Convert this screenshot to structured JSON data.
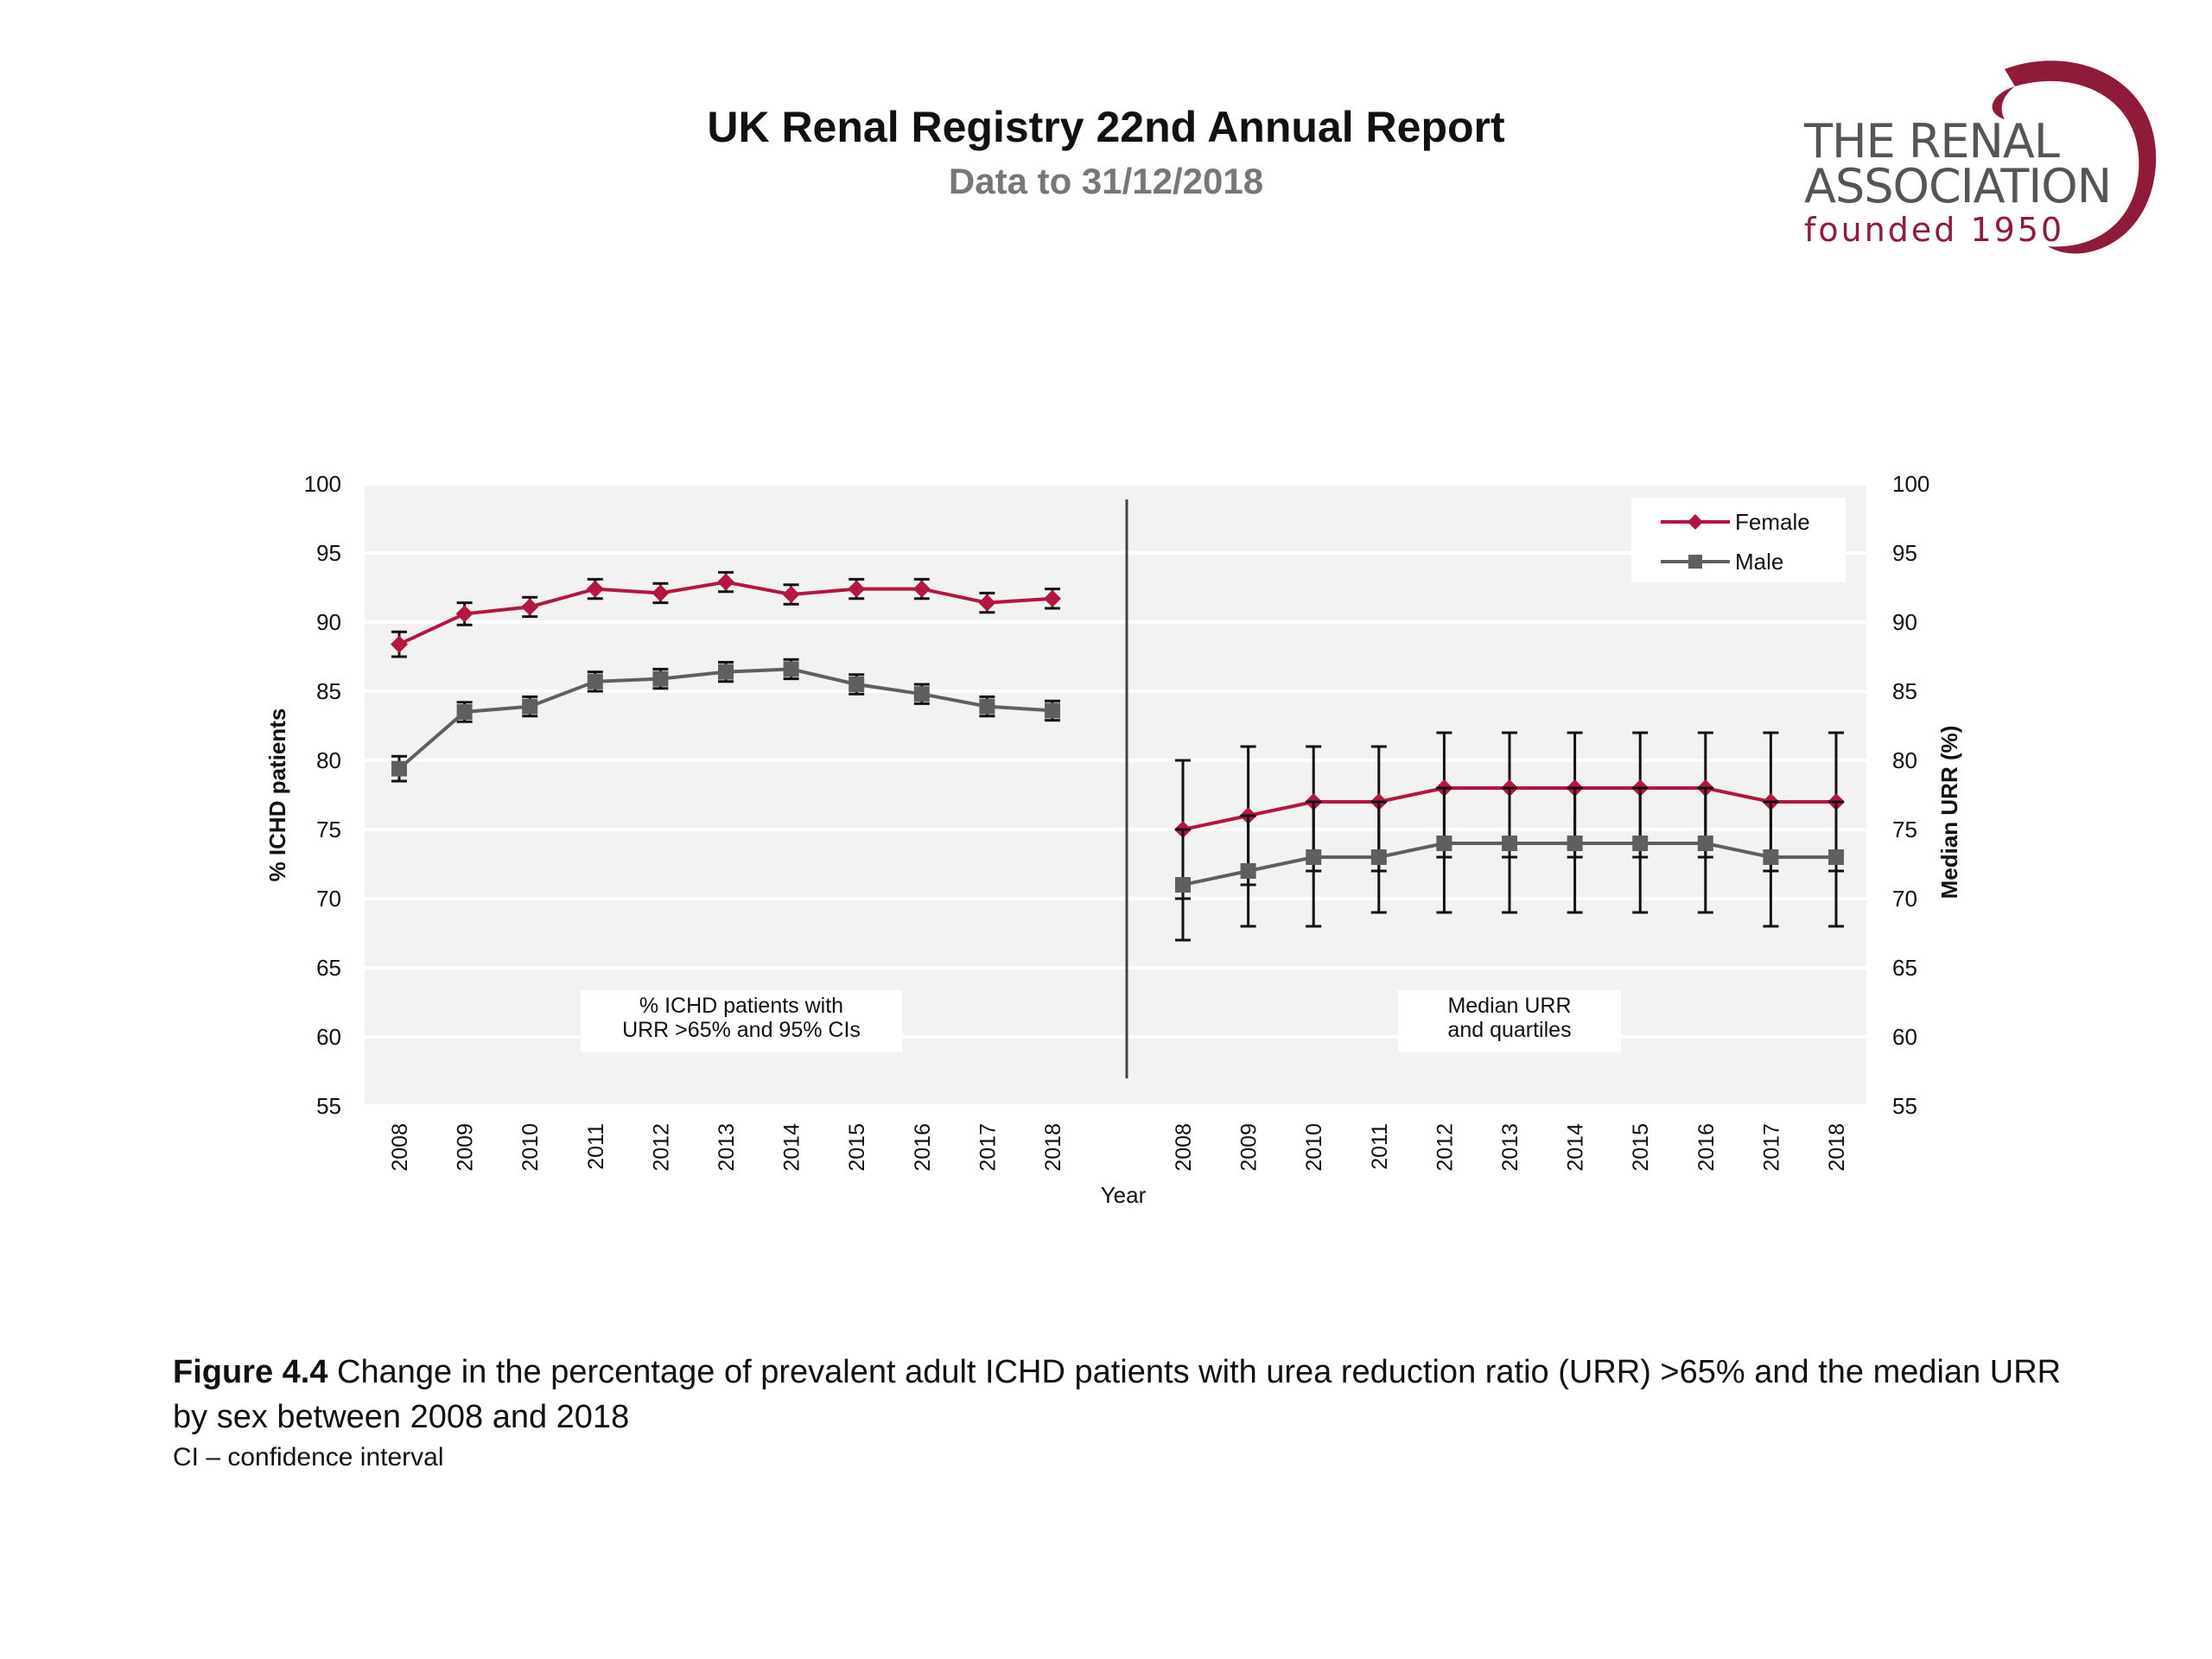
{
  "header": {
    "title": "UK Renal Registry 22nd Annual Report",
    "subtitle": "Data to 31/12/2018"
  },
  "logo": {
    "line1": "THE RENAL",
    "line2": "ASSOCIATION",
    "line3": "founded 1950",
    "color": "#8e1b3a"
  },
  "caption": {
    "label": "Figure 4.4",
    "text": " Change in the percentage of prevalent adult ICHD patients with urea reduction ratio (URR) >65% and the median URR by sex between 2008 and 2018",
    "note": "CI – confidence interval"
  },
  "chart_data": {
    "type": "line",
    "xlabel": "Year",
    "ylabel_left": "% ICHD patients",
    "ylabel_right": "Median URR (%)",
    "ylim": [
      55,
      100
    ],
    "yticks": [
      55,
      60,
      65,
      70,
      75,
      80,
      85,
      90,
      95,
      100
    ],
    "grid": true,
    "legend": {
      "placement": "top-right",
      "entries": [
        "Female",
        "Male"
      ]
    },
    "colors": {
      "female": "#b5163f",
      "male": "#5f5f5f",
      "error": "#111111"
    },
    "panels": [
      {
        "annotation": [
          "% ICHD patients with",
          "URR >65% and 95% CIs"
        ],
        "years": [
          "2008",
          "2009",
          "2010",
          "2011",
          "2012",
          "2013",
          "2014",
          "2015",
          "2016",
          "2017",
          "2018"
        ],
        "series": [
          {
            "name": "Female",
            "values": [
              88.4,
              90.6,
              91.1,
              92.4,
              92.1,
              92.9,
              92.0,
              92.4,
              92.4,
              91.4,
              91.7
            ],
            "lower": [
              87.5,
              89.8,
              90.4,
              91.7,
              91.4,
              92.2,
              91.3,
              91.7,
              91.7,
              90.7,
              91.0
            ],
            "upper": [
              89.3,
              91.4,
              91.8,
              93.1,
              92.8,
              93.6,
              92.7,
              93.1,
              93.1,
              92.1,
              92.4
            ]
          },
          {
            "name": "Male",
            "values": [
              79.4,
              83.5,
              83.9,
              85.7,
              85.9,
              86.4,
              86.6,
              85.5,
              84.8,
              83.9,
              83.6
            ],
            "lower": [
              78.5,
              82.8,
              83.2,
              85.0,
              85.2,
              85.7,
              85.9,
              84.8,
              84.1,
              83.2,
              82.9
            ],
            "upper": [
              80.3,
              84.2,
              84.6,
              86.4,
              86.6,
              87.1,
              87.3,
              86.2,
              85.5,
              84.6,
              84.3
            ]
          }
        ]
      },
      {
        "annotation": [
          "Median URR",
          "and quartiles"
        ],
        "years": [
          "2008",
          "2009",
          "2010",
          "2011",
          "2012",
          "2013",
          "2014",
          "2015",
          "2016",
          "2017",
          "2018"
        ],
        "series": [
          {
            "name": "Female",
            "values": [
              75,
              76,
              77,
              77,
              78,
              78,
              78,
              78,
              78,
              77,
              77
            ],
            "lower": [
              70,
              71,
              72,
              72,
              73,
              73,
              73,
              73,
              73,
              72,
              72
            ],
            "upper": [
              80,
              81,
              81,
              81,
              82,
              82,
              82,
              82,
              82,
              82,
              82
            ]
          },
          {
            "name": "Male",
            "values": [
              71,
              72,
              73,
              73,
              74,
              74,
              74,
              74,
              74,
              73,
              73
            ],
            "lower": [
              67,
              68,
              68,
              69,
              69,
              69,
              69,
              69,
              69,
              68,
              68
            ],
            "upper": [
              75,
              76,
              77,
              77,
              78,
              78,
              78,
              78,
              78,
              77,
              77
            ]
          }
        ]
      }
    ]
  }
}
